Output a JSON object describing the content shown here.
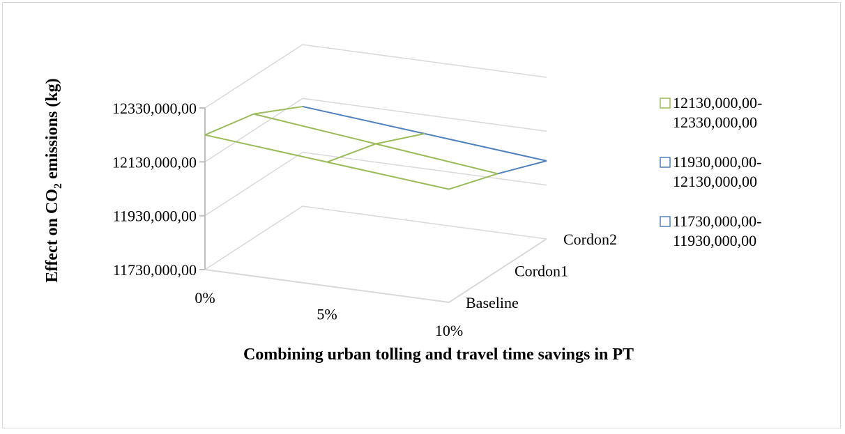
{
  "chart_data": {
    "type": "surface",
    "xlabel": "Combining urban tolling and travel time savings in PT",
    "ylabel_prefix": "Effect on CO",
    "ylabel_sub": "2",
    "ylabel_suffix": " emissions (kg)",
    "x_categories": [
      "0%",
      "5%",
      "10%"
    ],
    "depth_categories": [
      "Baseline",
      "Cordon1",
      "Cordon2"
    ],
    "z_ticks": [
      "11730,000,00",
      "11930,000,00",
      "12130,000,00",
      "12330,000,00"
    ],
    "zlim": [
      11730000,
      12330000
    ],
    "values": [
      [
        12230000,
        12190000,
        12150000
      ],
      [
        12190000,
        12140000,
        12090000
      ],
      [
        12100000,
        12060000,
        12020000
      ]
    ],
    "legend": [
      {
        "label_line1": "12130,000,00-",
        "label_line2": "12330,000,00",
        "color": "#9bbb59"
      },
      {
        "label_line1": "11930,000,00-",
        "label_line2": "12130,000,00",
        "color": "#4f81bd"
      },
      {
        "label_line1": "11730,000,00-",
        "label_line2": "11930,000,00",
        "color": "#4f81bd"
      }
    ],
    "legend_position": "right",
    "grid": true,
    "colors": {
      "band_high": "#9bbb59",
      "band_mid": "#4f81bd",
      "gridline": "#d9d9d9",
      "axis": "#bfbfbf"
    }
  }
}
